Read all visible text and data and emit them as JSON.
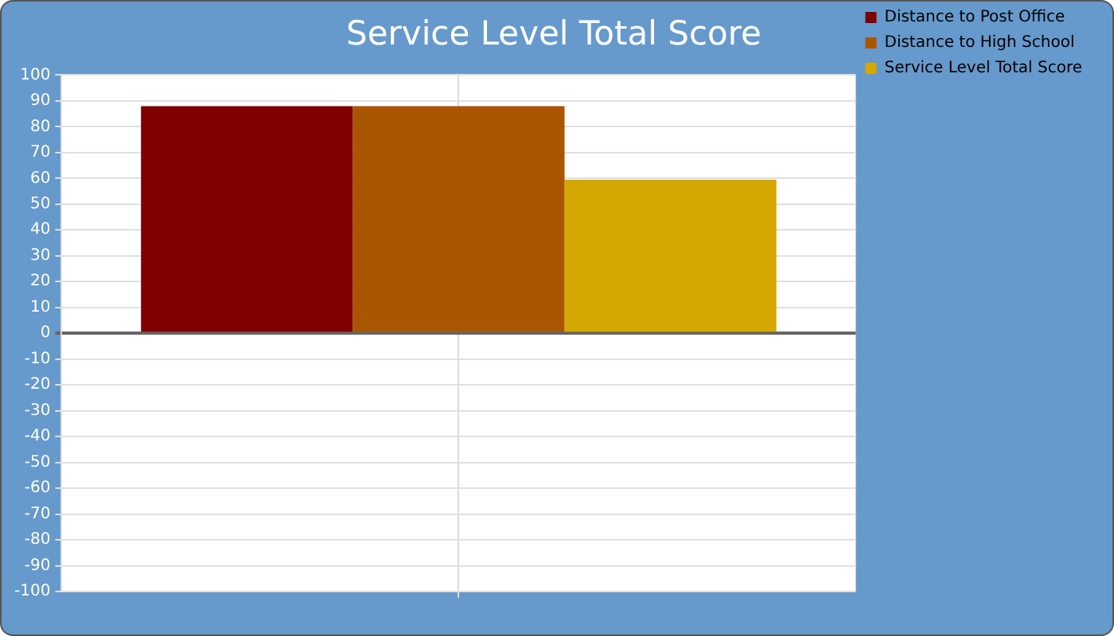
{
  "chart_data": {
    "type": "bar",
    "title": "Service Level Total Score",
    "categories": [
      null
    ],
    "series": [
      {
        "name": "Distance to Post Office",
        "color": "#800000",
        "values": [
          88
        ]
      },
      {
        "name": "Distance to High School",
        "color": "#aa5500",
        "values": [
          88
        ]
      },
      {
        "name": "Service Level Total Score",
        "color": "#d4a800",
        "values": [
          59.5
        ]
      }
    ],
    "ylim": [
      -100,
      100
    ],
    "yticks": [
      -100,
      -90,
      -80,
      -70,
      -60,
      -50,
      -40,
      -30,
      -20,
      -10,
      0,
      10,
      20,
      30,
      40,
      50,
      60,
      70,
      80,
      90,
      100
    ],
    "grid": true,
    "legend": "top right",
    "tick_labels": "y"
  }
}
